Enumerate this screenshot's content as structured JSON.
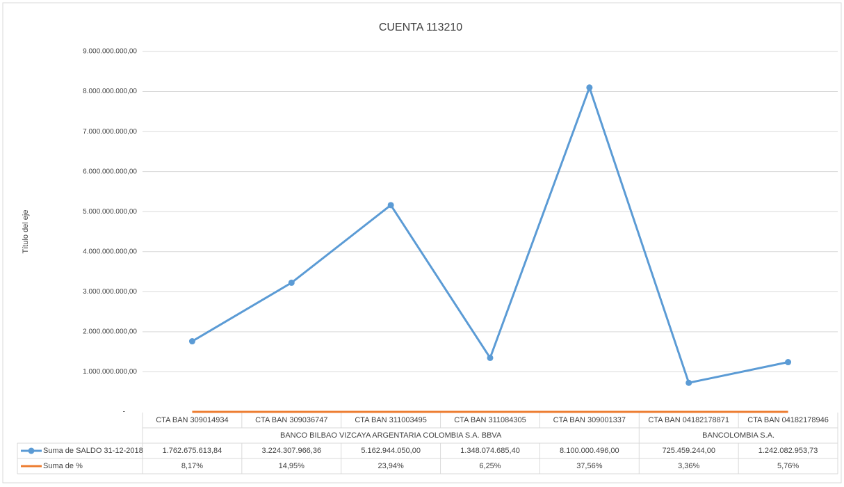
{
  "chart_data": {
    "type": "line",
    "title": "CUENTA 113210",
    "y_label": "Título del eje",
    "categories": [
      "CTA BAN 309014934",
      "CTA BAN 309036747",
      "CTA BAN 311003495",
      "CTA BAN 311084305",
      "CTA BAN 309001337",
      "CTA BAN 04182178871",
      "CTA BAN 04182178946"
    ],
    "group_labels": [
      "BANCO BILBAO VIZCAYA ARGENTARIA COLOMBIA S.A. BBVA",
      null,
      null,
      null,
      null,
      "BANCOLOMBIA S.A.",
      null
    ],
    "series": [
      {
        "name": "Suma de SALDO 31-12-2018",
        "color": "#5b9bd5",
        "marker": "circle",
        "values": [
          1762675613.84,
          3224307966.36,
          5162944050.0,
          1348074685.4,
          8100000496.0,
          725459244.0,
          1242082953.73
        ],
        "value_labels": [
          "1.762.675.613,84",
          "3.224.307.966,36",
          "5.162.944.050,00",
          "1.348.074.685,40",
          "8.100.000.496,00",
          "725.459.244,00",
          "1.242.082.953,73"
        ]
      },
      {
        "name": "Suma de %",
        "color": "#ed7d31",
        "marker": "none",
        "values": [
          8.17,
          14.95,
          23.94,
          6.25,
          37.56,
          3.36,
          5.76
        ],
        "value_labels": [
          "8,17%",
          "14,95%",
          "23,94%",
          "6,25%",
          "37,56%",
          "3,36%",
          "5,76%"
        ]
      }
    ],
    "ylim": [
      0,
      9000000000
    ],
    "yticks": [
      {
        "value": 0,
        "label": "-"
      },
      {
        "value": 1000000000,
        "label": "1.000.000.000,00"
      },
      {
        "value": 2000000000,
        "label": "2.000.000.000,00"
      },
      {
        "value": 3000000000,
        "label": "3.000.000.000,00"
      },
      {
        "value": 4000000000,
        "label": "4.000.000.000,00"
      },
      {
        "value": 5000000000,
        "label": "5.000.000.000,00"
      },
      {
        "value": 6000000000,
        "label": "6.000.000.000,00"
      },
      {
        "value": 7000000000,
        "label": "7.000.000.000,00"
      },
      {
        "value": 8000000000,
        "label": "8.000.000.000,00"
      },
      {
        "value": 9000000000,
        "label": "9.000.000.000,00"
      }
    ],
    "grid": true
  }
}
